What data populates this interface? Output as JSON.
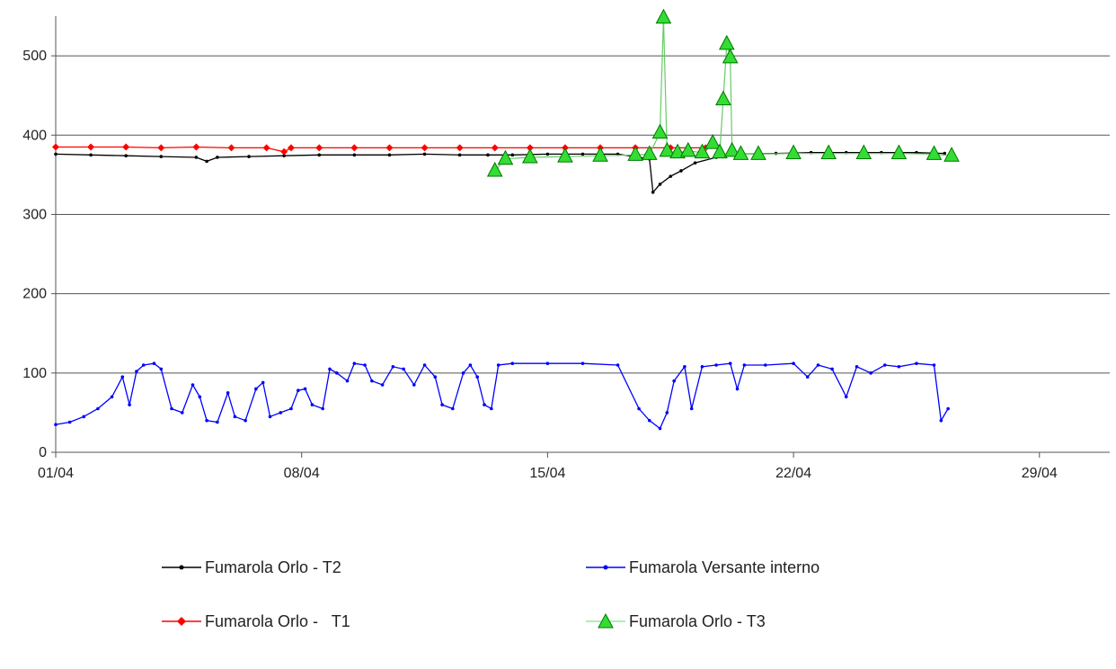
{
  "chart_data": {
    "type": "line",
    "title": "",
    "xlabel": "",
    "ylabel": "",
    "x_tick_labels": [
      "01/04",
      "08/04",
      "15/04",
      "22/04",
      "29/04"
    ],
    "x_ticks_day": [
      1,
      8,
      15,
      22,
      29
    ],
    "xlim_day": [
      1,
      31
    ],
    "ylim": [
      0,
      550
    ],
    "y_ticks": [
      0,
      100,
      200,
      300,
      400,
      500
    ],
    "y_tick_labels": [
      "0",
      "100",
      "200",
      "300",
      "400",
      "500"
    ],
    "grid": "horizontal",
    "legend_position": "bottom",
    "series": [
      {
        "name": "Fumarola Orlo - T2",
        "color": "#000000",
        "marker": "small-dot",
        "points": [
          [
            1.0,
            376
          ],
          [
            2.0,
            375
          ],
          [
            3.0,
            374
          ],
          [
            4.0,
            373
          ],
          [
            5.0,
            372
          ],
          [
            5.3,
            367
          ],
          [
            5.6,
            372
          ],
          [
            6.5,
            373
          ],
          [
            7.5,
            374
          ],
          [
            8.5,
            375
          ],
          [
            9.5,
            375
          ],
          [
            10.5,
            375
          ],
          [
            11.5,
            376
          ],
          [
            12.5,
            375
          ],
          [
            13.3,
            375
          ],
          [
            14.0,
            375
          ],
          [
            15.0,
            376
          ],
          [
            16.0,
            376
          ],
          [
            17.0,
            376
          ],
          [
            17.9,
            370
          ],
          [
            18.0,
            328
          ],
          [
            18.2,
            338
          ],
          [
            18.5,
            348
          ],
          [
            18.8,
            355
          ],
          [
            19.2,
            365
          ],
          [
            19.8,
            372
          ],
          [
            20.5,
            376
          ],
          [
            21.5,
            377
          ],
          [
            22.5,
            378
          ],
          [
            23.5,
            378
          ],
          [
            24.5,
            378
          ],
          [
            25.5,
            378
          ],
          [
            26.3,
            377
          ]
        ]
      },
      {
        "name": "Fumarola Versante interno",
        "color": "#0000ff",
        "marker": "small-dot",
        "points": [
          [
            1.0,
            35
          ],
          [
            1.4,
            38
          ],
          [
            1.8,
            45
          ],
          [
            2.2,
            55
          ],
          [
            2.6,
            70
          ],
          [
            2.9,
            95
          ],
          [
            3.1,
            60
          ],
          [
            3.3,
            102
          ],
          [
            3.5,
            110
          ],
          [
            3.8,
            112
          ],
          [
            4.0,
            105
          ],
          [
            4.3,
            55
          ],
          [
            4.6,
            50
          ],
          [
            4.9,
            85
          ],
          [
            5.1,
            70
          ],
          [
            5.3,
            40
          ],
          [
            5.6,
            38
          ],
          [
            5.9,
            75
          ],
          [
            6.1,
            45
          ],
          [
            6.4,
            40
          ],
          [
            6.7,
            80
          ],
          [
            6.9,
            88
          ],
          [
            7.1,
            45
          ],
          [
            7.4,
            50
          ],
          [
            7.7,
            55
          ],
          [
            7.9,
            78
          ],
          [
            8.1,
            80
          ],
          [
            8.3,
            60
          ],
          [
            8.6,
            55
          ],
          [
            8.8,
            105
          ],
          [
            9.0,
            100
          ],
          [
            9.3,
            90
          ],
          [
            9.5,
            112
          ],
          [
            9.8,
            110
          ],
          [
            10.0,
            90
          ],
          [
            10.3,
            85
          ],
          [
            10.6,
            108
          ],
          [
            10.9,
            105
          ],
          [
            11.2,
            85
          ],
          [
            11.5,
            110
          ],
          [
            11.8,
            95
          ],
          [
            12.0,
            60
          ],
          [
            12.3,
            55
          ],
          [
            12.6,
            100
          ],
          [
            12.8,
            110
          ],
          [
            13.0,
            95
          ],
          [
            13.2,
            60
          ],
          [
            13.4,
            55
          ],
          [
            13.6,
            110
          ],
          [
            14.0,
            112
          ],
          [
            15.0,
            112
          ],
          [
            16.0,
            112
          ],
          [
            17.0,
            110
          ],
          [
            17.6,
            55
          ],
          [
            17.9,
            40
          ],
          [
            18.2,
            30
          ],
          [
            18.4,
            50
          ],
          [
            18.6,
            90
          ],
          [
            18.9,
            108
          ],
          [
            19.1,
            55
          ],
          [
            19.4,
            108
          ],
          [
            19.8,
            110
          ],
          [
            20.2,
            112
          ],
          [
            20.4,
            80
          ],
          [
            20.6,
            110
          ],
          [
            21.2,
            110
          ],
          [
            22.0,
            112
          ],
          [
            22.4,
            95
          ],
          [
            22.7,
            110
          ],
          [
            23.1,
            105
          ],
          [
            23.5,
            70
          ],
          [
            23.8,
            108
          ],
          [
            24.2,
            100
          ],
          [
            24.6,
            110
          ],
          [
            25.0,
            108
          ],
          [
            25.5,
            112
          ],
          [
            26.0,
            110
          ],
          [
            26.2,
            40
          ],
          [
            26.4,
            55
          ]
        ]
      },
      {
        "name": "Fumarola Orlo -   T1",
        "color": "#ff0000",
        "marker": "diamond",
        "points": [
          [
            1.0,
            385
          ],
          [
            2.0,
            385
          ],
          [
            3.0,
            385
          ],
          [
            4.0,
            384
          ],
          [
            5.0,
            385
          ],
          [
            6.0,
            384
          ],
          [
            7.0,
            384
          ],
          [
            7.5,
            379
          ],
          [
            7.7,
            384
          ],
          [
            8.5,
            384
          ],
          [
            9.5,
            384
          ],
          [
            10.5,
            384
          ],
          [
            11.5,
            384
          ],
          [
            12.5,
            384
          ],
          [
            13.5,
            384
          ],
          [
            14.5,
            384
          ],
          [
            15.5,
            384
          ],
          [
            16.5,
            384
          ],
          [
            17.5,
            384
          ],
          [
            18.5,
            384
          ],
          [
            19.5,
            384
          ]
        ]
      },
      {
        "name": "Fumarola Orlo - T3",
        "color": "#008000",
        "marker": "triangle",
        "points": [
          [
            13.5,
            355
          ],
          [
            13.8,
            370
          ],
          [
            14.5,
            372
          ],
          [
            15.5,
            373
          ],
          [
            16.5,
            374
          ],
          [
            17.5,
            375
          ],
          [
            17.9,
            376
          ],
          [
            18.2,
            403
          ],
          [
            18.3,
            548
          ],
          [
            18.4,
            380
          ],
          [
            18.7,
            378
          ],
          [
            19.0,
            380
          ],
          [
            19.4,
            378
          ],
          [
            19.7,
            390
          ],
          [
            19.9,
            378
          ],
          [
            20.0,
            445
          ],
          [
            20.1,
            515
          ],
          [
            20.2,
            498
          ],
          [
            20.25,
            380
          ],
          [
            20.5,
            376
          ],
          [
            21.0,
            376
          ],
          [
            22.0,
            377
          ],
          [
            23.0,
            377
          ],
          [
            24.0,
            377
          ],
          [
            25.0,
            377
          ],
          [
            26.0,
            376
          ],
          [
            26.5,
            374
          ]
        ]
      }
    ]
  },
  "legend": {
    "items": [
      {
        "label": "Fumarola Orlo - T2",
        "color": "#000000",
        "marker": "dot"
      },
      {
        "label": "Fumarola Versante interno",
        "color": "#0000ff",
        "marker": "dot"
      },
      {
        "label": "Fumarola Orlo -   T1",
        "color": "#ff0000",
        "marker": "diamond"
      },
      {
        "label": "Fumarola Orlo - T3",
        "color": "#008000",
        "marker": "triangle"
      }
    ]
  }
}
